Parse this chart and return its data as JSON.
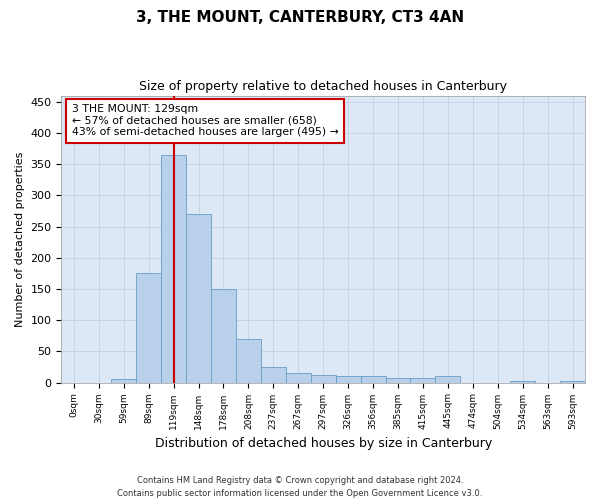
{
  "title": "3, THE MOUNT, CANTERBURY, CT3 4AN",
  "subtitle": "Size of property relative to detached houses in Canterbury",
  "xlabel": "Distribution of detached houses by size in Canterbury",
  "ylabel": "Number of detached properties",
  "bin_labels": [
    "0sqm",
    "30sqm",
    "59sqm",
    "89sqm",
    "119sqm",
    "148sqm",
    "178sqm",
    "208sqm",
    "237sqm",
    "267sqm",
    "297sqm",
    "326sqm",
    "356sqm",
    "385sqm",
    "415sqm",
    "445sqm",
    "474sqm",
    "504sqm",
    "534sqm",
    "563sqm",
    "593sqm"
  ],
  "bar_values": [
    0,
    0,
    5,
    175,
    365,
    270,
    150,
    70,
    25,
    15,
    12,
    10,
    10,
    8,
    8,
    10,
    0,
    0,
    2,
    0,
    2
  ],
  "bar_color": "#b8d0ea",
  "bar_edge_color": "#6a9ec5",
  "grid_color": "#c8d4e4",
  "bg_color": "#dce8f5",
  "property_line_color": "#cc0000",
  "annotation_text": "3 THE MOUNT: 129sqm\n← 57% of detached houses are smaller (658)\n43% of semi-detached houses are larger (495) →",
  "annotation_box_color": "#ffffff",
  "annotation_box_edge_color": "#cc0000",
  "footer_text": "Contains HM Land Registry data © Crown copyright and database right 2024.\nContains public sector information licensed under the Open Government Licence v3.0.",
  "fig_bg_color": "#ffffff",
  "ylim": [
    0,
    460
  ],
  "yticks": [
    0,
    50,
    100,
    150,
    200,
    250,
    300,
    350,
    400,
    450
  ]
}
